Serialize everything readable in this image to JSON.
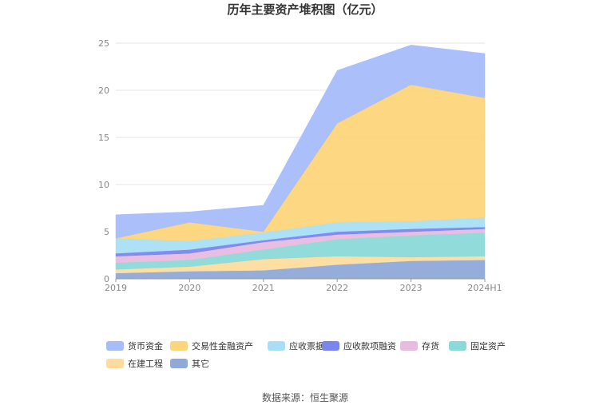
{
  "chart_data": {
    "type": "area",
    "stacked": true,
    "title": "历年主要资产堆积图（亿元）",
    "categories": [
      "2019",
      "2020",
      "2021",
      "2022",
      "2023",
      "2024H1"
    ],
    "y_ticks": [
      "0",
      "5",
      "10",
      "15",
      "20",
      "25"
    ],
    "ylim": [
      0,
      25
    ],
    "grid": "horizontal",
    "legend_position": "bottom",
    "series": [
      {
        "name": "其它",
        "color": "#8fa9d8",
        "values": [
          0.6,
          0.8,
          0.9,
          1.5,
          1.9,
          2.0
        ]
      },
      {
        "name": "在建工程",
        "color": "#fddc9e",
        "values": [
          0.4,
          0.5,
          1.2,
          0.9,
          0.4,
          0.4
        ]
      },
      {
        "name": "固定资产",
        "color": "#8bd9d9",
        "values": [
          0.7,
          0.7,
          1.0,
          1.8,
          2.3,
          2.5
        ]
      },
      {
        "name": "存货",
        "color": "#e8bcdf",
        "values": [
          0.7,
          0.7,
          0.8,
          0.5,
          0.4,
          0.4
        ]
      },
      {
        "name": "应收款项融资",
        "color": "#7b86ed",
        "values": [
          0.3,
          0.4,
          0.2,
          0.3,
          0.3,
          0.2
        ]
      },
      {
        "name": "应收票据",
        "color": "#a9dff6",
        "values": [
          1.6,
          0.9,
          0.8,
          1.0,
          0.8,
          1.0
        ]
      },
      {
        "name": "交易性金融资产",
        "color": "#fdd57a",
        "values": [
          0.0,
          2.0,
          0.1,
          10.5,
          14.5,
          12.7
        ]
      },
      {
        "name": "货币资金",
        "color": "#a6bdfa",
        "values": [
          2.5,
          1.1,
          2.8,
          5.6,
          4.2,
          4.7
        ]
      }
    ],
    "legend_order": [
      "货币资金",
      "交易性金融资产",
      "应收票据",
      "应收款项融资",
      "存货",
      "固定资产",
      "在建工程",
      "其它"
    ]
  },
  "footer": {
    "source": "数据来源：恒生聚源"
  }
}
